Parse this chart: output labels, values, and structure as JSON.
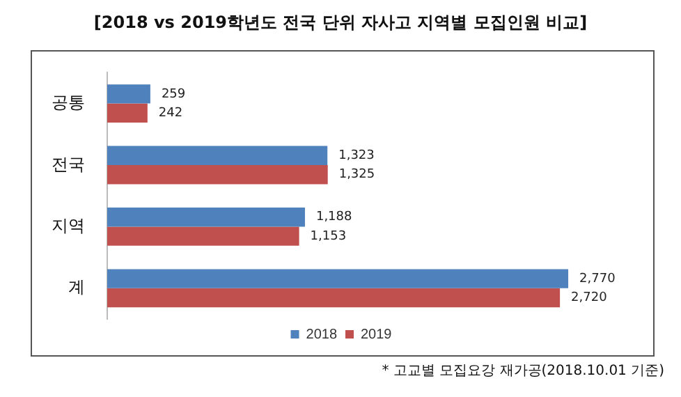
{
  "chart_data": {
    "type": "bar",
    "orientation": "horizontal",
    "title": "[2018 vs 2019학년도 전국 단위 자사고 지역별 모집인원 비교]",
    "categories": [
      "공통",
      "전국",
      "지역",
      "계"
    ],
    "series": [
      {
        "name": "2018",
        "color": "#4f81bd",
        "values": [
          259,
          1323,
          1188,
          2770
        ],
        "value_labels": [
          "259",
          "1,323",
          "1,188",
          "2,770"
        ]
      },
      {
        "name": "2019",
        "color": "#c0504d",
        "values": [
          242,
          1325,
          1153,
          2720
        ],
        "value_labels": [
          "242",
          "1,325",
          "1,153",
          "2,720"
        ]
      }
    ],
    "legend": "bottom",
    "annotations": [
      "* 고교별 모집요강 재가공(2018.10.01 기준)"
    ]
  }
}
